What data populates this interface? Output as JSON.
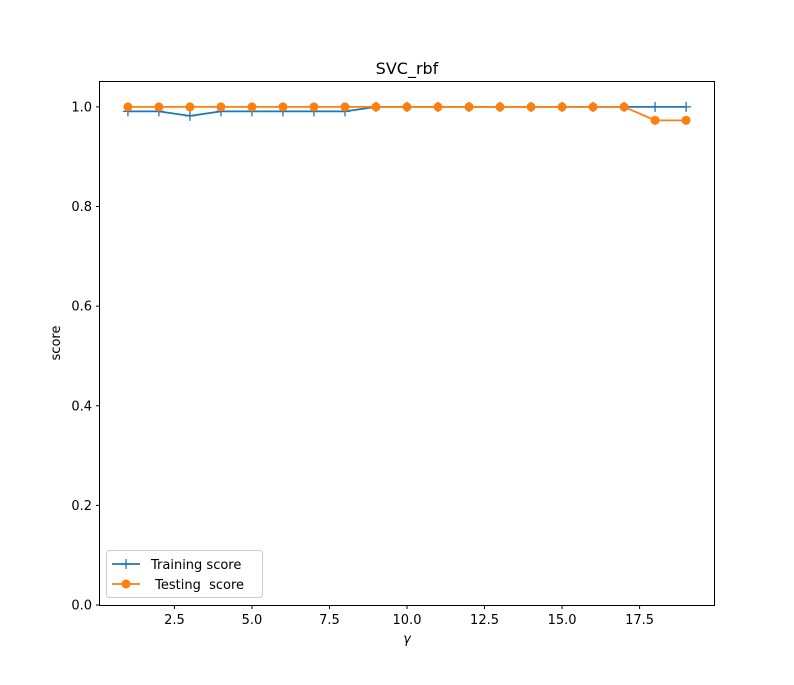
{
  "chart_data": {
    "type": "line",
    "title": "SVC_rbf",
    "xlabel": "γ",
    "ylabel": "score",
    "xlim": [
      0.1,
      19.9
    ],
    "ylim": [
      0.0,
      1.05
    ],
    "x": [
      1,
      2,
      3,
      4,
      5,
      6,
      7,
      8,
      9,
      10,
      11,
      12,
      13,
      14,
      15,
      16,
      17,
      18,
      19
    ],
    "xticks": [
      2.5,
      5.0,
      7.5,
      10.0,
      12.5,
      15.0,
      17.5
    ],
    "xtick_labels": [
      "2.5",
      "5.0",
      "7.5",
      "10.0",
      "12.5",
      "15.0",
      "17.5"
    ],
    "yticks": [
      0.0,
      0.2,
      0.4,
      0.6,
      0.8,
      1.0
    ],
    "ytick_labels": [
      "0.0",
      "0.2",
      "0.4",
      "0.6",
      "0.8",
      "1.0"
    ],
    "grid": false,
    "legend_position": "lower-left",
    "series": [
      {
        "name": "Training score",
        "marker": "plus",
        "color": "#1f77b4",
        "values": [
          0.991,
          0.991,
          0.982,
          0.991,
          0.991,
          0.991,
          0.991,
          0.991,
          1.0,
          1.0,
          1.0,
          1.0,
          1.0,
          1.0,
          1.0,
          1.0,
          1.0,
          1.0,
          1.0
        ]
      },
      {
        "name": " Testing  score",
        "marker": "circle",
        "color": "#ff7f0e",
        "values": [
          1.0,
          1.0,
          1.0,
          1.0,
          1.0,
          1.0,
          1.0,
          1.0,
          1.0,
          1.0,
          1.0,
          1.0,
          1.0,
          1.0,
          1.0,
          1.0,
          1.0,
          0.973,
          0.973
        ]
      }
    ]
  }
}
